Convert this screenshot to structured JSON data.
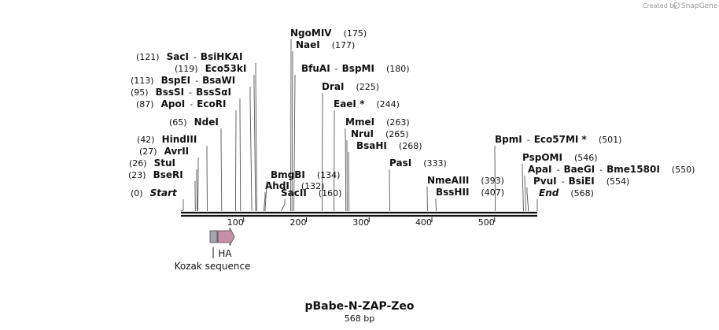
{
  "credit": {
    "prefix": "Created by",
    "brand": "SnapGene"
  },
  "map": {
    "name": "pBabe-N-ZAP-Zeo",
    "length_label": "568 bp",
    "length": 568
  },
  "axis": {
    "ticks": [
      {
        "value": 100,
        "label": "100"
      },
      {
        "value": 200,
        "label": "200"
      },
      {
        "value": 300,
        "label": "300"
      },
      {
        "value": 400,
        "label": "400"
      },
      {
        "value": 500,
        "label": "500"
      }
    ]
  },
  "features": [
    {
      "name": "Kozak sequence",
      "start": 47,
      "end": 57,
      "color": "#a3a7ac"
    },
    {
      "name": "HA",
      "start": 58,
      "end": 84,
      "color": "#c690a8"
    }
  ],
  "sites": [
    {
      "pos": "(0)",
      "name": "Start",
      "bp": 0,
      "italic": true
    },
    {
      "pos": "(23)",
      "name": "BseRI",
      "bp": 23
    },
    {
      "pos": "(26)",
      "name": "StuI",
      "bp": 26
    },
    {
      "pos": "(27)",
      "name": "AvrII",
      "bp": 27
    },
    {
      "pos": "(42)",
      "name": "HindIII",
      "bp": 42
    },
    {
      "pos": "(65)",
      "name": "NdeI",
      "bp": 65
    },
    {
      "pos": "(87)",
      "name": "ApoI",
      "alt": "EcoRI",
      "bp": 87
    },
    {
      "pos": "(95)",
      "name": "BssSI",
      "alt": "BssSαI",
      "bp": 95
    },
    {
      "pos": "(113)",
      "name": "BspEI",
      "alt": "BsaWI",
      "bp": 113
    },
    {
      "pos": "(119)",
      "name": "Eco53kI",
      "bp": 119
    },
    {
      "pos": "(121)",
      "name": "SacI",
      "alt": "BsiHKAI",
      "bp": 121
    },
    {
      "pos": "(132)",
      "name": "AhdI",
      "bp": 132
    },
    {
      "pos": "(134)",
      "name": "BmgBI",
      "bp": 134
    },
    {
      "pos": "(160)",
      "name": "SacII",
      "bp": 160
    },
    {
      "pos": "(175)",
      "name": "NgoMIV",
      "bp": 175
    },
    {
      "pos": "(177)",
      "name": "NaeI",
      "bp": 177
    },
    {
      "pos": "(180)",
      "name": "BfuAI",
      "alt": "BspMI",
      "bp": 180
    },
    {
      "pos": "(225)",
      "name": "DraI",
      "bp": 225
    },
    {
      "pos": "(244)",
      "name": "EaeI *",
      "bp": 244
    },
    {
      "pos": "(263)",
      "name": "MmeI",
      "bp": 263
    },
    {
      "pos": "(265)",
      "name": "NruI",
      "bp": 265
    },
    {
      "pos": "(268)",
      "name": "BsaHI",
      "bp": 268
    },
    {
      "pos": "(333)",
      "name": "PasI",
      "bp": 333
    },
    {
      "pos": "(393)",
      "name": "NmeAIII",
      "bp": 393
    },
    {
      "pos": "(407)",
      "name": "BssHII",
      "bp": 407
    },
    {
      "pos": "(501)",
      "name": "BpmI",
      "alt": "Eco57MI *",
      "bp": 501
    },
    {
      "pos": "(546)",
      "name": "PspOMI",
      "bp": 546
    },
    {
      "pos": "(550)",
      "name": "ApaI",
      "alt": "BaeGI",
      "alt2": "Bme1580I",
      "bp": 550
    },
    {
      "pos": "(554)",
      "name": "PvuI",
      "alt": "BsiEI",
      "bp": 554
    },
    {
      "pos": "(568)",
      "name": "End",
      "bp": 568,
      "italic": true
    }
  ]
}
